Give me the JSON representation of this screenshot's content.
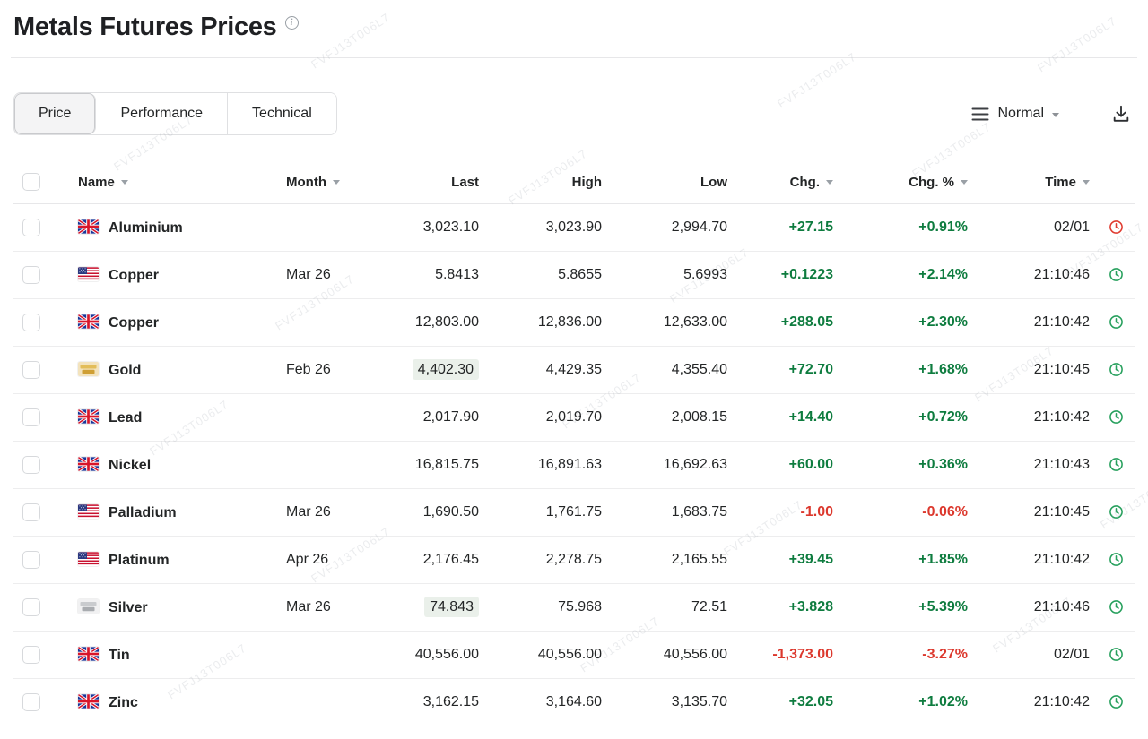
{
  "watermark": "FVFJ13T006L7",
  "page": {
    "title": "Metals Futures Prices"
  },
  "tabs": [
    {
      "label": "Price",
      "active": true
    },
    {
      "label": "Performance",
      "active": false
    },
    {
      "label": "Technical",
      "active": false
    }
  ],
  "toolbar": {
    "view_label": "Normal"
  },
  "colors": {
    "positive": "#0e7c3f",
    "negative": "#dc382d",
    "clock_green": "#27a05d",
    "clock_red": "#e03c31"
  },
  "table": {
    "columns": [
      {
        "label": "Name",
        "sortable": true
      },
      {
        "label": "Month",
        "sortable": true
      },
      {
        "label": "Last",
        "sortable": false
      },
      {
        "label": "High",
        "sortable": false
      },
      {
        "label": "Low",
        "sortable": false
      },
      {
        "label": "Chg.",
        "sortable": true
      },
      {
        "label": "Chg. %",
        "sortable": true
      },
      {
        "label": "Time",
        "sortable": true
      }
    ],
    "rows": [
      {
        "flag": "uk",
        "name": "Aluminium",
        "month": "",
        "last": "3,023.10",
        "high": "3,023.90",
        "low": "2,994.70",
        "chg": "+27.15",
        "chg_pct": "+0.91%",
        "time": "02/01",
        "clock": "red",
        "highlight_last": false
      },
      {
        "flag": "us",
        "name": "Copper",
        "month": "Mar 26",
        "last": "5.8413",
        "high": "5.8655",
        "low": "5.6993",
        "chg": "+0.1223",
        "chg_pct": "+2.14%",
        "time": "21:10:46",
        "clock": "green",
        "highlight_last": false
      },
      {
        "flag": "uk",
        "name": "Copper",
        "month": "",
        "last": "12,803.00",
        "high": "12,836.00",
        "low": "12,633.00",
        "chg": "+288.05",
        "chg_pct": "+2.30%",
        "time": "21:10:42",
        "clock": "green",
        "highlight_last": false
      },
      {
        "flag": "gold",
        "name": "Gold",
        "month": "Feb 26",
        "last": "4,402.30",
        "high": "4,429.35",
        "low": "4,355.40",
        "chg": "+72.70",
        "chg_pct": "+1.68%",
        "time": "21:10:45",
        "clock": "green",
        "highlight_last": true
      },
      {
        "flag": "uk",
        "name": "Lead",
        "month": "",
        "last": "2,017.90",
        "high": "2,019.70",
        "low": "2,008.15",
        "chg": "+14.40",
        "chg_pct": "+0.72%",
        "time": "21:10:42",
        "clock": "green",
        "highlight_last": false
      },
      {
        "flag": "uk",
        "name": "Nickel",
        "month": "",
        "last": "16,815.75",
        "high": "16,891.63",
        "low": "16,692.63",
        "chg": "+60.00",
        "chg_pct": "+0.36%",
        "time": "21:10:43",
        "clock": "green",
        "highlight_last": false
      },
      {
        "flag": "us",
        "name": "Palladium",
        "month": "Mar 26",
        "last": "1,690.50",
        "high": "1,761.75",
        "low": "1,683.75",
        "chg": "-1.00",
        "chg_pct": "-0.06%",
        "time": "21:10:45",
        "clock": "green",
        "highlight_last": false
      },
      {
        "flag": "us",
        "name": "Platinum",
        "month": "Apr 26",
        "last": "2,176.45",
        "high": "2,278.75",
        "low": "2,165.55",
        "chg": "+39.45",
        "chg_pct": "+1.85%",
        "time": "21:10:42",
        "clock": "green",
        "highlight_last": false
      },
      {
        "flag": "silver",
        "name": "Silver",
        "month": "Mar 26",
        "last": "74.843",
        "high": "75.968",
        "low": "72.51",
        "chg": "+3.828",
        "chg_pct": "+5.39%",
        "time": "21:10:46",
        "clock": "green",
        "highlight_last": true
      },
      {
        "flag": "uk",
        "name": "Tin",
        "month": "",
        "last": "40,556.00",
        "high": "40,556.00",
        "low": "40,556.00",
        "chg": "-1,373.00",
        "chg_pct": "-3.27%",
        "time": "02/01",
        "clock": "green",
        "highlight_last": false
      },
      {
        "flag": "uk",
        "name": "Zinc",
        "month": "",
        "last": "3,162.15",
        "high": "3,164.60",
        "low": "3,135.70",
        "chg": "+32.05",
        "chg_pct": "+1.02%",
        "time": "21:10:42",
        "clock": "green",
        "highlight_last": false
      }
    ]
  }
}
